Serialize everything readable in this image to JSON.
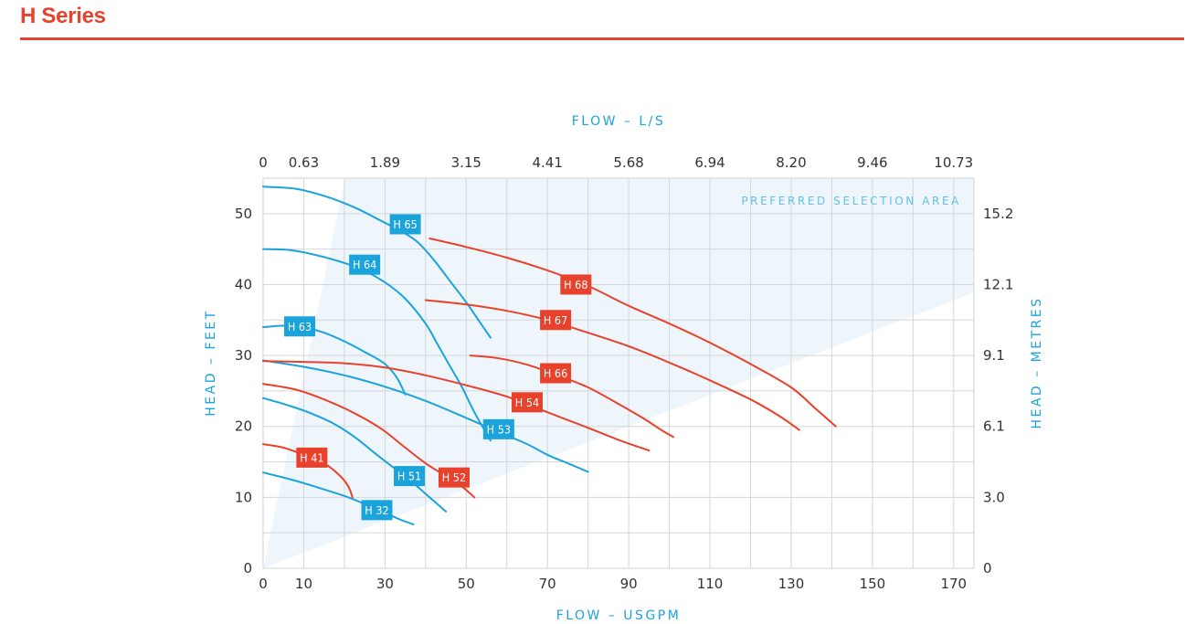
{
  "page": {
    "title": "H Series"
  },
  "chart_data": {
    "type": "line",
    "title": "",
    "top_axis": {
      "label": "FLOW – L/S",
      "ticks": [
        "0",
        "0.63",
        "1.89",
        "3.15",
        "4.41",
        "5.68",
        "6.94",
        "8.20",
        "9.46",
        "10.73"
      ]
    },
    "bottom_axis": {
      "label": "FLOW – USGPM",
      "ticks": [
        0,
        10,
        30,
        50,
        70,
        90,
        110,
        130,
        150,
        170
      ],
      "range": [
        0,
        175
      ]
    },
    "left_axis": {
      "label": "HEAD – FEET",
      "ticks": [
        0,
        10,
        20,
        30,
        40,
        50
      ],
      "range": [
        0,
        55
      ]
    },
    "right_axis": {
      "label": "HEAD – METRES",
      "ticks": [
        {
          "label": "0",
          "feet": 0
        },
        {
          "label": "3.0",
          "feet": 10
        },
        {
          "label": "6.1",
          "feet": 20
        },
        {
          "label": "9.1",
          "feet": 30
        },
        {
          "label": "12.1",
          "feet": 40
        },
        {
          "label": "15.2",
          "feet": 50
        }
      ]
    },
    "grid": true,
    "preferred_area": {
      "label": "PREFERRED SELECTION AREA",
      "color": "#eef6fb"
    },
    "colors": {
      "blue": "#1ba3dc",
      "red": "#e8412c"
    },
    "series": [
      {
        "name": "H 65",
        "color": "blue",
        "label_at": [
          35,
          48.5
        ],
        "points": [
          [
            0,
            53.8
          ],
          [
            8,
            53.5
          ],
          [
            15,
            52.5
          ],
          [
            22,
            51
          ],
          [
            28,
            49.3
          ],
          [
            34,
            47.5
          ],
          [
            38,
            46
          ],
          [
            42,
            43.5
          ],
          [
            46,
            40.5
          ],
          [
            50,
            37.5
          ],
          [
            53,
            35
          ],
          [
            56,
            32.5
          ]
        ]
      },
      {
        "name": "H 64",
        "color": "blue",
        "label_at": [
          25,
          42.8
        ],
        "points": [
          [
            0,
            45
          ],
          [
            6,
            44.9
          ],
          [
            12,
            44.3
          ],
          [
            18,
            43.4
          ],
          [
            24,
            42.2
          ],
          [
            30,
            40.3
          ],
          [
            35,
            38
          ],
          [
            40,
            34.5
          ],
          [
            43,
            31.5
          ],
          [
            46,
            28.5
          ],
          [
            49,
            25.5
          ],
          [
            52,
            22
          ],
          [
            56,
            18
          ]
        ]
      },
      {
        "name": "H 63",
        "color": "blue",
        "label_at": [
          9,
          34.1
        ],
        "points": [
          [
            0,
            34
          ],
          [
            5,
            34.2
          ],
          [
            10,
            34
          ],
          [
            15,
            33.2
          ],
          [
            20,
            32
          ],
          [
            25,
            30.5
          ],
          [
            30,
            28.8
          ],
          [
            33,
            26.8
          ],
          [
            35,
            24.5
          ]
        ]
      },
      {
        "name": "H 53",
        "color": "blue",
        "label_at": [
          58,
          19.6
        ],
        "points": [
          [
            0,
            29.3
          ],
          [
            10,
            28.4
          ],
          [
            20,
            27.2
          ],
          [
            30,
            25.6
          ],
          [
            40,
            23.6
          ],
          [
            50,
            21.2
          ],
          [
            58,
            19.2
          ],
          [
            65,
            17.5
          ],
          [
            70,
            16
          ],
          [
            75,
            14.8
          ],
          [
            80,
            13.6
          ]
        ]
      },
      {
        "name": "H 51",
        "color": "blue",
        "label_at": [
          36,
          13
        ],
        "points": [
          [
            0,
            24
          ],
          [
            6,
            23
          ],
          [
            12,
            21.8
          ],
          [
            18,
            20.2
          ],
          [
            23,
            18.3
          ],
          [
            28,
            16
          ],
          [
            33,
            13.8
          ],
          [
            37,
            12
          ],
          [
            40,
            10.5
          ],
          [
            43,
            9
          ],
          [
            45,
            8
          ]
        ]
      },
      {
        "name": "H 32",
        "color": "blue",
        "label_at": [
          28,
          8.2
        ],
        "points": [
          [
            0,
            13.5
          ],
          [
            7,
            12.5
          ],
          [
            14,
            11.3
          ],
          [
            21,
            10
          ],
          [
            26,
            8.8
          ],
          [
            30,
            7.8
          ],
          [
            34,
            6.8
          ],
          [
            37,
            6.2
          ]
        ]
      },
      {
        "name": "H 68",
        "color": "red",
        "label_at": [
          77,
          40
        ],
        "points": [
          [
            41,
            46.5
          ],
          [
            50,
            45.3
          ],
          [
            60,
            43.8
          ],
          [
            70,
            42
          ],
          [
            80,
            39.8
          ],
          [
            90,
            37
          ],
          [
            100,
            34.5
          ],
          [
            110,
            31.8
          ],
          [
            120,
            28.8
          ],
          [
            130,
            25.5
          ],
          [
            136,
            22.5
          ],
          [
            141,
            20
          ]
        ]
      },
      {
        "name": "H 67",
        "color": "red",
        "label_at": [
          72,
          35
        ],
        "points": [
          [
            40,
            37.8
          ],
          [
            50,
            37.2
          ],
          [
            60,
            36.3
          ],
          [
            70,
            35
          ],
          [
            80,
            33.2
          ],
          [
            90,
            31.3
          ],
          [
            100,
            29
          ],
          [
            110,
            26.5
          ],
          [
            120,
            23.8
          ],
          [
            127,
            21.5
          ],
          [
            132,
            19.5
          ]
        ]
      },
      {
        "name": "H 66",
        "color": "red",
        "label_at": [
          72,
          27.5
        ],
        "points": [
          [
            51,
            30
          ],
          [
            58,
            29.6
          ],
          [
            65,
            28.7
          ],
          [
            72,
            27.3
          ],
          [
            80,
            25.5
          ],
          [
            88,
            23
          ],
          [
            94,
            21
          ],
          [
            98,
            19.5
          ],
          [
            101,
            18.5
          ]
        ]
      },
      {
        "name": "H 54",
        "color": "red",
        "label_at": [
          65,
          23.4
        ],
        "points": [
          [
            0,
            29.2
          ],
          [
            10,
            29.1
          ],
          [
            20,
            28.9
          ],
          [
            30,
            28.3
          ],
          [
            40,
            27.2
          ],
          [
            50,
            25.8
          ],
          [
            60,
            24.2
          ],
          [
            70,
            22
          ],
          [
            80,
            19.8
          ],
          [
            88,
            18
          ],
          [
            95,
            16.6
          ]
        ]
      },
      {
        "name": "H 52",
        "color": "red",
        "label_at": [
          47,
          12.8
        ],
        "points": [
          [
            0,
            26
          ],
          [
            8,
            25.2
          ],
          [
            15,
            23.8
          ],
          [
            22,
            22
          ],
          [
            29,
            19.7
          ],
          [
            35,
            17
          ],
          [
            40,
            14.8
          ],
          [
            45,
            13
          ],
          [
            49,
            11.5
          ],
          [
            52,
            10
          ]
        ]
      },
      {
        "name": "H 41",
        "color": "red",
        "label_at": [
          12,
          15.6
        ],
        "points": [
          [
            0,
            17.5
          ],
          [
            5,
            17
          ],
          [
            10,
            16
          ],
          [
            15,
            14.8
          ],
          [
            19,
            13
          ],
          [
            21,
            11.5
          ],
          [
            22,
            10
          ]
        ]
      }
    ]
  }
}
